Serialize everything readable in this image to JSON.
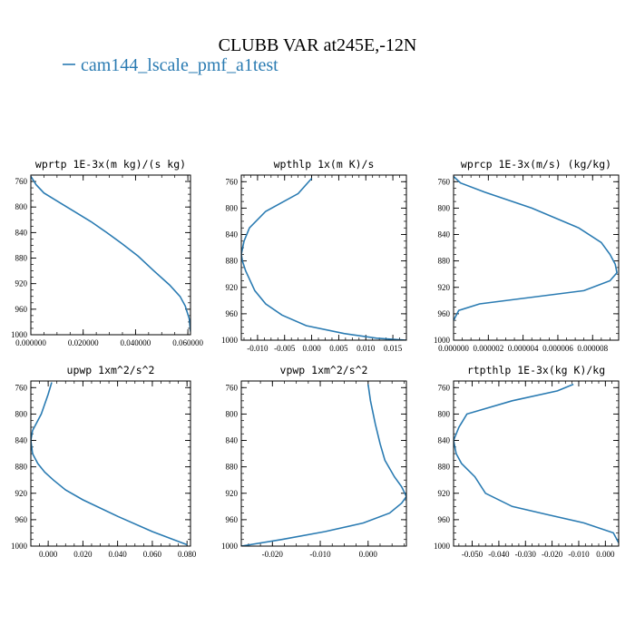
{
  "figure": {
    "title": "CLUBB VAR at245E,-12N",
    "legend_label": "cam144_lscale_pmf_a1test",
    "line_color": "#2a7bb2"
  },
  "chart_data": [
    {
      "type": "line",
      "title": "wprtp  1E-3x(m kg)/(s kg)",
      "xlim": [
        0.0,
        0.061
      ],
      "ylim": [
        1000,
        750
      ],
      "xticks": [
        0.0,
        0.02,
        0.04,
        0.06
      ],
      "xtick_labels": [
        "0.000000",
        "0.020000",
        "0.040000",
        "0.060000"
      ],
      "yticks": [
        760,
        800,
        840,
        880,
        920,
        960,
        1000
      ],
      "ytick_labels": [
        "760",
        "800",
        "840",
        "880",
        "920",
        "960",
        "1000"
      ],
      "series": [
        {
          "x": [
            0.0,
            0.002,
            0.005,
            0.011,
            0.017,
            0.023,
            0.029,
            0.035,
            0.041,
            0.047,
            0.053,
            0.057,
            0.059,
            0.0605,
            0.061
          ],
          "y": [
            752,
            765,
            778,
            793,
            808,
            823,
            840,
            858,
            877,
            900,
            922,
            940,
            955,
            975,
            995
          ]
        }
      ]
    },
    {
      "type": "line",
      "title": "wpthlp  1x(m K)/s",
      "xlim": [
        -0.013,
        0.0175
      ],
      "ylim": [
        1000,
        750
      ],
      "xticks": [
        -0.01,
        -0.005,
        0.0,
        0.005,
        0.01,
        0.015
      ],
      "xtick_labels": [
        "-0.010",
        "-0.005",
        "0.000",
        "0.005",
        "0.010",
        "0.015"
      ],
      "yticks": [
        760,
        800,
        840,
        880,
        920,
        960,
        1000
      ],
      "ytick_labels": [
        "760",
        "800",
        "840",
        "880",
        "920",
        "960",
        "1000"
      ],
      "series": [
        {
          "x": [
            0.0,
            -0.0025,
            -0.0085,
            -0.0115,
            -0.0125,
            -0.013,
            -0.0128,
            -0.0122,
            -0.0105,
            -0.0085,
            -0.0055,
            -0.001,
            0.006,
            0.012,
            0.0175
          ],
          "y": [
            755,
            778,
            805,
            830,
            850,
            870,
            880,
            895,
            925,
            945,
            962,
            978,
            990,
            997,
            1000
          ]
        }
      ]
    },
    {
      "type": "line",
      "title": "wprcp  1E-3x(m/s) (kg/kg)",
      "xlim": [
        0.0,
        9.5e-06
      ],
      "ylim": [
        1000,
        750
      ],
      "xticks": [
        0.0,
        2e-06,
        4e-06,
        6e-06,
        8e-06
      ],
      "xtick_labels": [
        "0.000000",
        "0.000002",
        "0.000004",
        "0.000006",
        "0.000008"
      ],
      "yticks": [
        760,
        800,
        840,
        880,
        920,
        960,
        1000
      ],
      "ytick_labels": [
        "760",
        "800",
        "840",
        "880",
        "920",
        "960",
        "1000"
      ],
      "series": [
        {
          "x": [
            0.0,
            4e-07,
            1.8e-06,
            4.5e-06,
            7.2e-06,
            8.5e-06,
            9e-06,
            9.3e-06,
            9.4e-06,
            9e-06,
            7.5e-06,
            1.5e-06,
            3e-07,
            0.0
          ],
          "y": [
            752,
            762,
            776,
            800,
            830,
            852,
            870,
            885,
            898,
            910,
            925,
            945,
            955,
            970
          ]
        }
      ]
    },
    {
      "type": "line",
      "title": "upwp  1xm^2/s^2",
      "xlim": [
        -0.01,
        0.082
      ],
      "ylim": [
        1000,
        750
      ],
      "xticks": [
        0.0,
        0.02,
        0.04,
        0.06,
        0.08
      ],
      "xtick_labels": [
        "0.000",
        "0.020",
        "0.040",
        "0.060",
        "0.080"
      ],
      "yticks": [
        760,
        800,
        840,
        880,
        920,
        960,
        1000
      ],
      "ytick_labels": [
        "760",
        "800",
        "840",
        "880",
        "920",
        "960",
        "1000"
      ],
      "series": [
        {
          "x": [
            0.002,
            0.0,
            -0.004,
            -0.009,
            -0.01,
            -0.009,
            -0.006,
            -0.002,
            0.003,
            0.01,
            0.02,
            0.04,
            0.06,
            0.08
          ],
          "y": [
            752,
            770,
            800,
            825,
            840,
            860,
            875,
            888,
            900,
            915,
            930,
            955,
            978,
            998
          ]
        }
      ]
    },
    {
      "type": "line",
      "title": "vpwp  1xm^2/s^2",
      "xlim": [
        -0.0265,
        0.008
      ],
      "ylim": [
        1000,
        750
      ],
      "xticks": [
        -0.02,
        -0.01,
        0.0
      ],
      "xtick_labels": [
        "-0.020",
        "-0.010",
        "0.000"
      ],
      "yticks": [
        760,
        800,
        840,
        880,
        920,
        960,
        1000
      ],
      "ytick_labels": [
        "760",
        "800",
        "840",
        "880",
        "920",
        "960",
        "1000"
      ],
      "series": [
        {
          "x": [
            0.0,
            0.0005,
            0.0015,
            0.0025,
            0.0035,
            0.0055,
            0.007,
            0.008,
            0.007,
            0.0045,
            -0.001,
            -0.009,
            -0.018,
            -0.0265
          ],
          "y": [
            755,
            780,
            815,
            845,
            870,
            895,
            910,
            925,
            935,
            950,
            965,
            978,
            990,
            1000
          ]
        }
      ]
    },
    {
      "type": "line",
      "title": "rtpthlp  1E-3x(kg K)/kg",
      "xlim": [
        -0.057,
        0.005
      ],
      "ylim": [
        1000,
        750
      ],
      "xticks": [
        -0.05,
        -0.04,
        -0.03,
        -0.02,
        -0.01,
        0.0
      ],
      "xtick_labels": [
        "-0.050",
        "-0.040",
        "-0.030",
        "-0.020",
        "-0.010",
        "0.000"
      ],
      "yticks": [
        760,
        800,
        840,
        880,
        920,
        960,
        1000
      ],
      "ytick_labels": [
        "760",
        "800",
        "840",
        "880",
        "920",
        "960",
        "1000"
      ],
      "series": [
        {
          "x": [
            -0.012,
            -0.018,
            -0.035,
            -0.052,
            -0.055,
            -0.057,
            -0.056,
            -0.054,
            -0.049,
            -0.045,
            -0.035,
            -0.022,
            -0.008,
            0.003,
            0.005
          ],
          "y": [
            755,
            765,
            780,
            800,
            820,
            840,
            860,
            875,
            895,
            920,
            940,
            952,
            965,
            980,
            995
          ]
        }
      ]
    }
  ]
}
